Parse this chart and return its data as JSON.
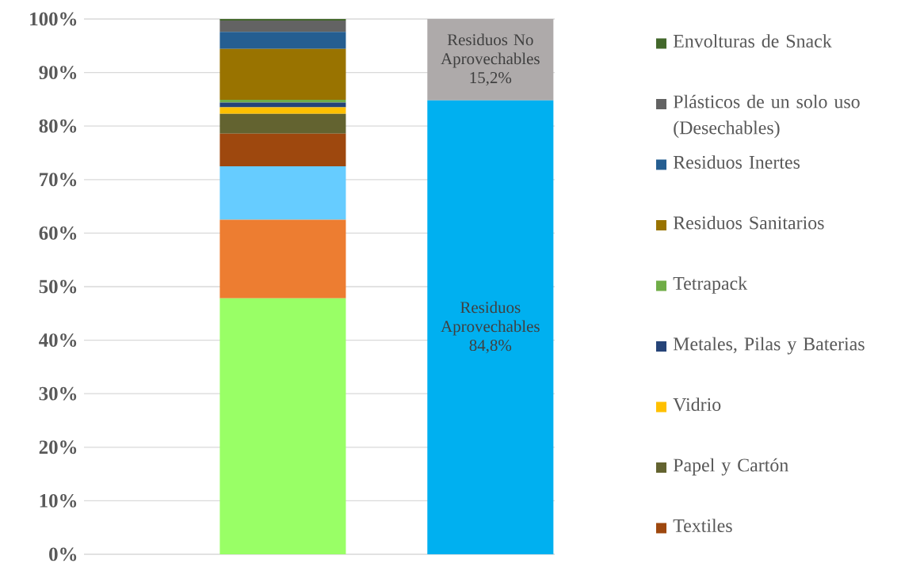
{
  "chart_data": {
    "type": "bar",
    "stacked": true,
    "categories": [
      null,
      null
    ],
    "ylim": [
      0,
      100
    ],
    "yticks": [
      {
        "value": 0,
        "label": "0%"
      },
      {
        "value": 10,
        "label": "10%"
      },
      {
        "value": 20,
        "label": "20%"
      },
      {
        "value": 30,
        "label": "30%"
      },
      {
        "value": 40,
        "label": "40%"
      },
      {
        "value": 50,
        "label": "50%"
      },
      {
        "value": 60,
        "label": "60%"
      },
      {
        "value": 70,
        "label": "70%"
      },
      {
        "value": 80,
        "label": "80%"
      },
      {
        "value": 90,
        "label": "90%"
      },
      {
        "value": 100,
        "label": "100%"
      }
    ],
    "grid": "y",
    "legend": "right",
    "series": [
      {
        "color": "#99ff66",
        "values": [
          47.8,
          null
        ]
      },
      {
        "color": "#ed7d31",
        "values": [
          14.7,
          null
        ]
      },
      {
        "color": "#66ccff",
        "values": [
          10.0,
          null
        ]
      },
      {
        "name": "Textiles",
        "color": "#9e480e",
        "values": [
          6.1,
          null
        ]
      },
      {
        "name": "Papel y Cartón",
        "color": "#636330",
        "values": [
          3.7,
          null
        ]
      },
      {
        "name": "Vidrio",
        "color": "#ffc000",
        "values": [
          1.2,
          null
        ]
      },
      {
        "name": "Metales, Pilas y Baterias",
        "color": "#264478",
        "values": [
          0.9,
          null
        ]
      },
      {
        "name": "Tetrapack",
        "color": "#70ad47",
        "values": [
          0.5,
          null
        ]
      },
      {
        "name": "Residuos Sanitarios",
        "color": "#997300",
        "values": [
          9.5,
          null
        ]
      },
      {
        "name": "Residuos Inertes",
        "color": "#255e91",
        "values": [
          3.2,
          null
        ]
      },
      {
        "name": "Plásticos de un solo uso (Desechables)",
        "color": "#636363",
        "values": [
          2.1,
          null
        ]
      },
      {
        "name": "Envolturas de Snack",
        "color": "#43682b",
        "values": [
          0.3,
          null
        ]
      },
      {
        "name": "Residuos Aprovechables",
        "color": "#00b0f0",
        "values": [
          null,
          84.8
        ],
        "value_labels": [
          null,
          "84,8%"
        ]
      },
      {
        "name": "Residuos No Aprovechables",
        "color": "#aeaaaa",
        "values": [
          null,
          15.2
        ],
        "value_labels": [
          null,
          "15,2%"
        ]
      }
    ]
  }
}
